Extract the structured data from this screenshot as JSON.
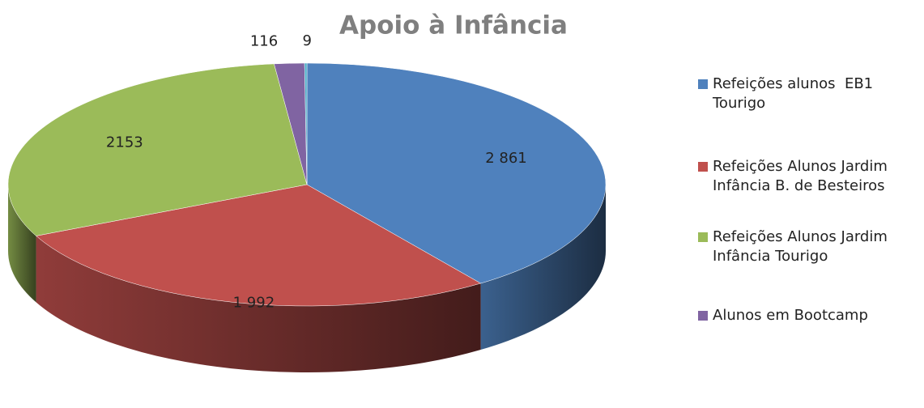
{
  "chart_data": {
    "type": "pie",
    "title": "Apoio à Infância",
    "categories": [
      "Refeições alunos  EB1 Tourigo",
      "Refeições Alunos Jardim Infância B. de Besteiros",
      "Refeições Alunos Jardim Infância Tourigo",
      "Alunos em Bootcamp",
      null
    ],
    "values": [
      2861,
      1992,
      2153,
      116,
      9
    ],
    "value_labels": [
      "2 861",
      "1 992",
      "2153",
      "116",
      "9"
    ],
    "colors": [
      "#4f81bd",
      "#c0504d",
      "#9bbb59",
      "#8064a2",
      "#4bacc6"
    ],
    "legend": "right"
  }
}
